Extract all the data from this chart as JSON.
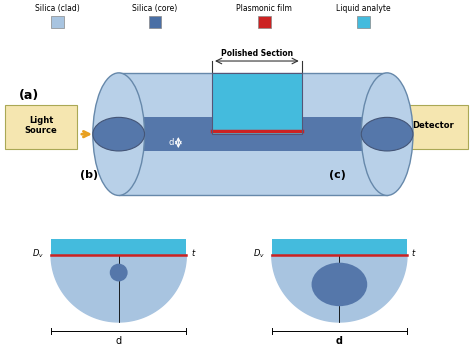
{
  "colors": {
    "silica_clad": "#a8c4e0",
    "silica_core": "#4a6fa5",
    "plasmonic": "#cc2222",
    "liquid": "#44bbdd",
    "background": "#ffffff",
    "box_fill": "#f5e6b0",
    "arrow_color": "#e8a020",
    "cylinder_body": "#b8d0e8",
    "cylinder_core": "#5577aa",
    "dim_line": "#555555",
    "text_color": "#000000"
  },
  "legend_items": [
    "Silica (clad)",
    "Silica (core)",
    "Plasmonic film",
    "Liquid analyte"
  ],
  "legend_colors": [
    "#a8c4e0",
    "#4a6fa5",
    "#cc2222",
    "#44bbdd"
  ],
  "label_a": "(a)",
  "label_b": "(b)",
  "label_c": "(c)"
}
